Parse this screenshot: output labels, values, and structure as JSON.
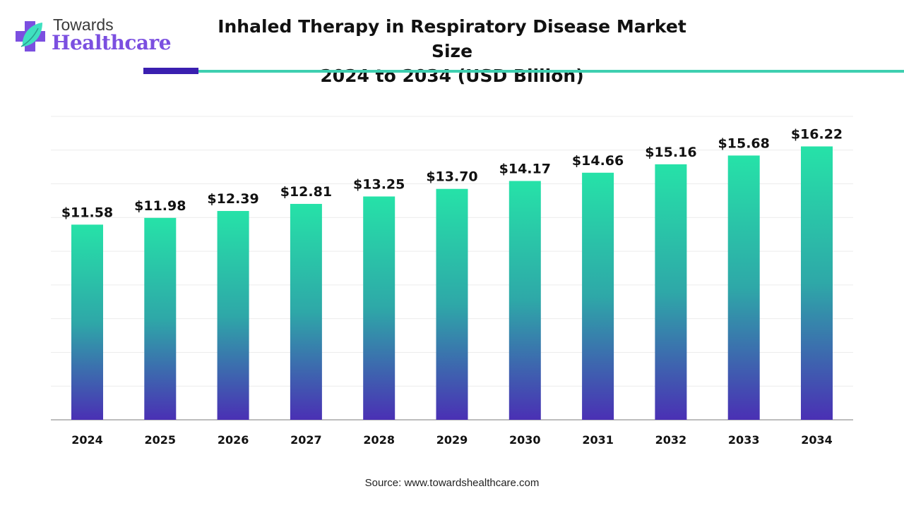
{
  "logo": {
    "line1": "Towards",
    "line2": "Healthcare"
  },
  "title_line1": "Inhaled Therapy in Respiratory Disease Market Size",
  "title_line2": "2024 to 2034 (USD Billion)",
  "source": "Source: www.towardshealthcare.com",
  "colors": {
    "bar_top": "#26e2a8",
    "bar_mid": "#2ea8a8",
    "bar_bottom": "#4a30b4",
    "accent_dark": "#3a1fb0",
    "accent_teal": "#3ecfb0"
  },
  "chart_data": {
    "type": "bar",
    "title": "Inhaled Therapy in Respiratory Disease Market Size 2024 to 2034 (USD Billion)",
    "categories": [
      "2024",
      "2025",
      "2026",
      "2027",
      "2028",
      "2029",
      "2030",
      "2031",
      "2032",
      "2033",
      "2034"
    ],
    "values": [
      11.58,
      11.98,
      12.39,
      12.81,
      13.25,
      13.7,
      14.17,
      14.66,
      15.16,
      15.68,
      16.22
    ],
    "data_labels": [
      "$11.58",
      "$11.98",
      "$12.39",
      "$12.81",
      "$13.25",
      "$13.70",
      "$14.17",
      "$14.66",
      "$15.16",
      "$15.68",
      "$16.22"
    ],
    "xlabel": "",
    "ylabel": "",
    "ylim": [
      0,
      18
    ],
    "grid": true,
    "y_tick_labels_shown": false,
    "legend": "none"
  }
}
